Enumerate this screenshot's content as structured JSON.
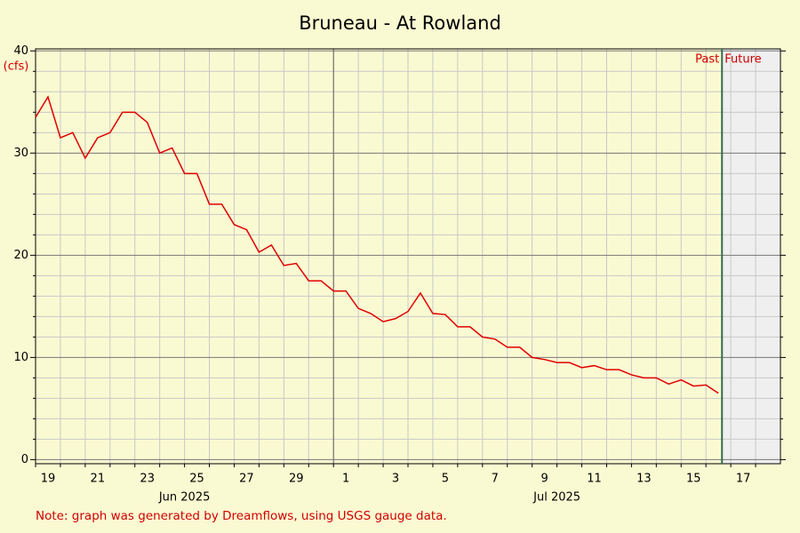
{
  "chart_data": {
    "type": "line",
    "title": "Bruneau - At Rowland",
    "y_label": "(cfs)",
    "note": "Note: graph was generated by Dreamflows, using USGS gauge data.",
    "now": "2025-07-16T15:30",
    "past_label": "Past",
    "future_label": "Future",
    "x": [
      "2025-06-19T00:00",
      "2025-06-19T12:00",
      "2025-06-20T00:00",
      "2025-06-20T12:00",
      "2025-06-21T00:00",
      "2025-06-21T12:00",
      "2025-06-22T00:00",
      "2025-06-22T12:00",
      "2025-06-23T00:00",
      "2025-06-23T12:00",
      "2025-06-24T00:00",
      "2025-06-24T12:00",
      "2025-06-25T00:00",
      "2025-06-25T12:00",
      "2025-06-26T00:00",
      "2025-06-26T12:00",
      "2025-06-27T00:00",
      "2025-06-27T12:00",
      "2025-06-28T00:00",
      "2025-06-28T12:00",
      "2025-06-29T00:00",
      "2025-06-29T12:00",
      "2025-06-30T00:00",
      "2025-06-30T12:00",
      "2025-07-01T00:00",
      "2025-07-01T12:00",
      "2025-07-02T00:00",
      "2025-07-02T12:00",
      "2025-07-03T00:00",
      "2025-07-03T12:00",
      "2025-07-04T00:00",
      "2025-07-04T12:00",
      "2025-07-05T00:00",
      "2025-07-05T12:00",
      "2025-07-06T00:00",
      "2025-07-06T12:00",
      "2025-07-07T00:00",
      "2025-07-07T12:00",
      "2025-07-08T00:00",
      "2025-07-08T12:00",
      "2025-07-09T00:00",
      "2025-07-09T12:00",
      "2025-07-10T00:00",
      "2025-07-10T12:00",
      "2025-07-11T00:00",
      "2025-07-11T12:00",
      "2025-07-12T00:00",
      "2025-07-12T12:00",
      "2025-07-13T00:00",
      "2025-07-13T12:00",
      "2025-07-14T00:00",
      "2025-07-14T12:00",
      "2025-07-15T00:00",
      "2025-07-15T12:00",
      "2025-07-16T00:00",
      "2025-07-16T12:00"
    ],
    "series": [
      {
        "color": "#e00000",
        "values": [
          33.5,
          35.5,
          31.5,
          32,
          29.5,
          31.5,
          32,
          34,
          34,
          33,
          30,
          30.5,
          28,
          28,
          25,
          25,
          23,
          22.5,
          20.3,
          21,
          19,
          19.2,
          17.5,
          17.5,
          16.5,
          16.5,
          14.8,
          14.3,
          13.5,
          13.8,
          14.5,
          16.3,
          14.3,
          14.2,
          13,
          13,
          12,
          11.8,
          11,
          11,
          10,
          9.8,
          9.5,
          9.5,
          9,
          9.2,
          8.8,
          8.8,
          8.3,
          8,
          8,
          7.4,
          7.8,
          7.2,
          7.3,
          6.5
        ]
      }
    ],
    "xlim": [
      "2025-06-19T00:00",
      "2025-07-19T00:00"
    ],
    "xticks": [
      {
        "value": "2025-06-19",
        "label": "19"
      },
      {
        "value": "2025-06-20",
        "label": null
      },
      {
        "value": "2025-06-21",
        "label": "21"
      },
      {
        "value": "2025-06-22",
        "label": null
      },
      {
        "value": "2025-06-23",
        "label": "23"
      },
      {
        "value": "2025-06-24",
        "label": null
      },
      {
        "value": "2025-06-25",
        "label": "25"
      },
      {
        "value": "2025-06-26",
        "label": null
      },
      {
        "value": "2025-06-27",
        "label": "27"
      },
      {
        "value": "2025-06-28",
        "label": null
      },
      {
        "value": "2025-06-29",
        "label": "29"
      },
      {
        "value": "2025-06-30",
        "label": null
      },
      {
        "value": "2025-07-01",
        "label": "1"
      },
      {
        "value": "2025-07-02",
        "label": null
      },
      {
        "value": "2025-07-03",
        "label": "3"
      },
      {
        "value": "2025-07-04",
        "label": null
      },
      {
        "value": "2025-07-05",
        "label": "5"
      },
      {
        "value": "2025-07-06",
        "label": null
      },
      {
        "value": "2025-07-07",
        "label": "7"
      },
      {
        "value": "2025-07-08",
        "label": null
      },
      {
        "value": "2025-07-09",
        "label": "9"
      },
      {
        "value": "2025-07-10",
        "label": null
      },
      {
        "value": "2025-07-11",
        "label": "11"
      },
      {
        "value": "2025-07-12",
        "label": null
      },
      {
        "value": "2025-07-13",
        "label": "13"
      },
      {
        "value": "2025-07-14",
        "label": null
      },
      {
        "value": "2025-07-15",
        "label": "15"
      },
      {
        "value": "2025-07-16",
        "label": null
      },
      {
        "value": "2025-07-17",
        "label": "17"
      },
      {
        "value": "2025-07-18",
        "label": null
      }
    ],
    "month_labels": [
      {
        "value": "2025-06-25",
        "label": "Jun 2025"
      },
      {
        "value": "2025-07-10",
        "label": "Jul 2025"
      }
    ],
    "ylim": [
      -0.4,
      40.2
    ],
    "yticks": [
      0,
      10,
      20,
      30,
      40
    ],
    "yticks_minor": [
      2,
      4,
      6,
      8,
      12,
      14,
      16,
      18,
      22,
      24,
      26,
      28,
      32,
      34,
      36,
      38
    ]
  }
}
